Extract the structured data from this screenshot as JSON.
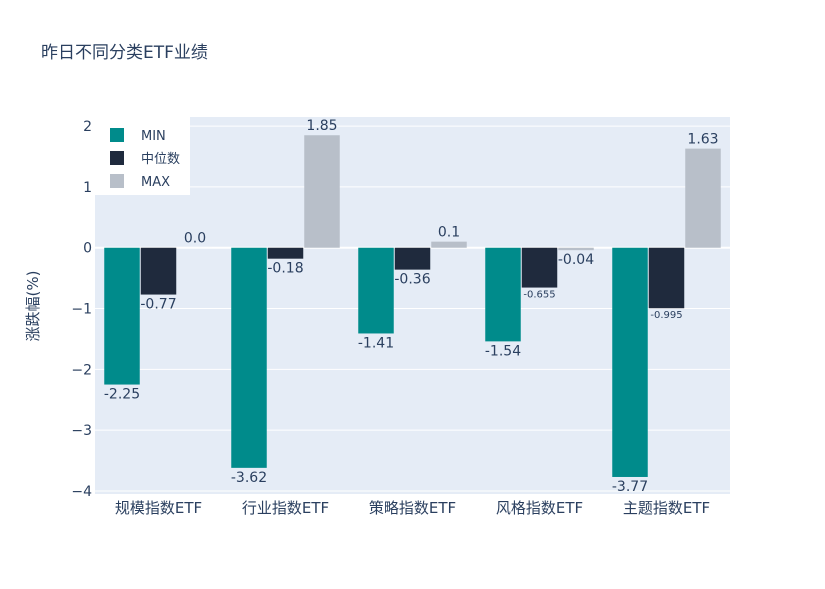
{
  "chart_data": {
    "type": "bar",
    "title": "昨日不同分类ETF业绩",
    "xlabel": "",
    "ylabel": "涨跌幅(%)",
    "ylim": [
      -4.05,
      2.15
    ],
    "yticks": [
      2,
      1,
      0,
      -1,
      -2,
      -3,
      -4
    ],
    "ytick_labels": [
      "2",
      "1",
      "0",
      "−1",
      "−2",
      "−3",
      "−4"
    ],
    "categories": [
      "规模指数ETF",
      "行业指数ETF",
      "策略指数ETF",
      "风格指数ETF",
      "主题指数ETF"
    ],
    "series": [
      {
        "name": "MIN",
        "color": "#008b8b",
        "values": [
          -2.25,
          -3.62,
          -1.41,
          -1.54,
          -3.77
        ],
        "labels": [
          "-2.25",
          "-3.62",
          "-1.41",
          "-1.54",
          "-3.77"
        ]
      },
      {
        "name": "中位数",
        "color": "#1f2a3d",
        "values": [
          -0.77,
          -0.18,
          -0.36,
          -0.655,
          -0.995
        ],
        "labels": [
          "-0.77",
          "-0.18",
          "-0.36",
          "-0.655",
          "-0.995"
        ]
      },
      {
        "name": "MAX",
        "color": "#b8bfc9",
        "values": [
          0.0,
          1.85,
          0.1,
          -0.04,
          1.63
        ],
        "labels": [
          "0.0",
          "1.85",
          "0.1",
          "-0.04",
          "1.63"
        ]
      }
    ],
    "legend_position": "top-left"
  },
  "colors": {
    "plot_bg": "#e5ecf6",
    "grid": "#ffffff",
    "text": "#2a3f5f"
  }
}
